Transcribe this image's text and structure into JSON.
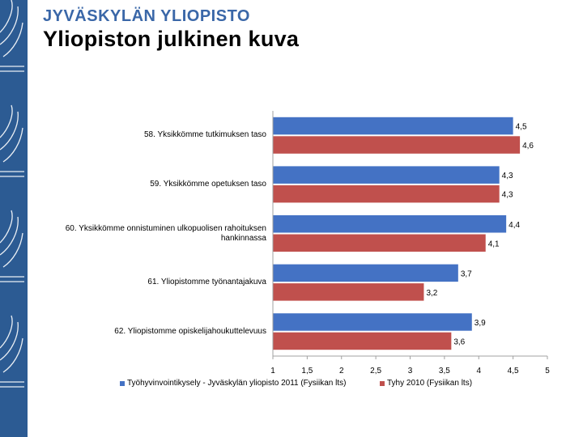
{
  "header": {
    "brand": "JYVÄSKYLÄN YLIOPISTO",
    "title": "Yliopiston julkinen kuva"
  },
  "colors": {
    "sidebar": "#2c5b93",
    "brand": "#3a67a8",
    "series1": "#4472c4",
    "series2": "#c0504d",
    "axis": "#a0a0a0"
  },
  "chart_data": {
    "type": "bar",
    "orientation": "horizontal",
    "categories": [
      "58. Yksikkömme tutkimuksen taso",
      "59. Yksikkömme opetuksen taso",
      "60. Yksikkömme onnistuminen ulkopuolisen rahoituksen hankinnassa",
      "61. Yliopistomme työnantajakuva",
      "62. Yliopistomme opiskelijahoukuttelevuus"
    ],
    "series": [
      {
        "name": "Työhyvinvointikysely - Jyväskylän yliopisto 2011 (Fysiikan lts)",
        "values": [
          4.5,
          4.3,
          4.4,
          3.7,
          3.9
        ],
        "labels": [
          "4,5",
          "4,3",
          "4,4",
          "3,7",
          "3,9"
        ]
      },
      {
        "name": "Tyhy 2010 (Fysiikan lts)",
        "values": [
          4.6,
          4.3,
          4.1,
          3.2,
          3.6
        ],
        "labels": [
          "4,6",
          "4,3",
          "4,1",
          "3,2",
          "3,6"
        ]
      }
    ],
    "xlim": [
      1,
      5
    ],
    "xticks": [
      1,
      1.5,
      2,
      2.5,
      3,
      3.5,
      4,
      4.5,
      5
    ],
    "xtick_labels": [
      "1",
      "1,5",
      "2",
      "2,5",
      "3",
      "3,5",
      "4",
      "4,5",
      "5"
    ],
    "legend_position": "bottom",
    "grid": false
  }
}
